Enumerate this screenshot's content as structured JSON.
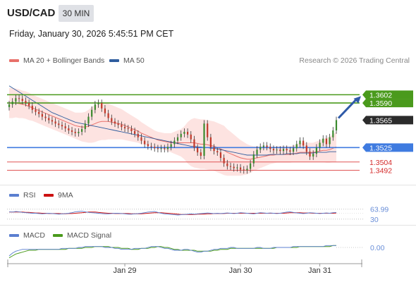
{
  "header": {
    "symbol": "USD/CAD",
    "timeframe": "30 MIN",
    "datetime": "Friday, January 30, 2026 5:45:51 PM CET"
  },
  "legend": {
    "ma20": "MA 20 + Bollinger Bands",
    "ma50": "MA 50",
    "rsi": "RSI",
    "rsi_ma": "9MA",
    "macd": "MACD",
    "macd_signal": "MACD Signal"
  },
  "research": "Research © 2026 Trading Central",
  "colors": {
    "ma20": "#e8706a",
    "ma50": "#2f5d9e",
    "bull": "#3a8a2e",
    "bear": "#c0392b",
    "resistance": "#4a9a1c",
    "support": "#3f7be0",
    "pivot_red": "#e05555",
    "band": "#fde0de",
    "rsi": "#5b7fd0",
    "rsi_ma": "#cc1111",
    "macd": "#5b7fd0",
    "macd_signal": "#4a9a1c"
  },
  "chart_data": {
    "type": "candlestick",
    "price_levels": [
      {
        "label": "1.3602",
        "value": 1.3602,
        "kind": "resistance"
      },
      {
        "label": "1.3590",
        "value": 1.359,
        "kind": "resistance"
      },
      {
        "label": "1.3565",
        "value": 1.3565,
        "kind": "current"
      },
      {
        "label": "1.3525",
        "value": 1.3525,
        "kind": "support"
      },
      {
        "label": "1.3504",
        "value": 1.3504,
        "kind": "pivot"
      },
      {
        "label": "1.3492",
        "value": 1.3492,
        "kind": "pivot"
      }
    ],
    "close": [
      1.3588,
      1.3592,
      1.3597,
      1.3596,
      1.3593,
      1.359,
      1.3586,
      1.358,
      1.3577,
      1.3574,
      1.357,
      1.3568,
      1.3565,
      1.3563,
      1.356,
      1.3558,
      1.3556,
      1.3553,
      1.355,
      1.3548,
      1.3546,
      1.3548,
      1.3552,
      1.356,
      1.357,
      1.358,
      1.3588,
      1.359,
      1.3582,
      1.3575,
      1.3568,
      1.3563,
      1.356,
      1.3558,
      1.3555,
      1.3553,
      1.3552,
      1.3549,
      1.3545,
      1.354,
      1.3535,
      1.353,
      1.3527,
      1.3526,
      1.3524,
      1.3523,
      1.3524,
      1.3523,
      1.3526,
      1.353,
      1.3535,
      1.354,
      1.3545,
      1.3548,
      1.3544,
      1.3537,
      1.3525,
      1.3518,
      1.3513,
      1.356,
      1.354,
      1.3525,
      1.352,
      1.3518,
      1.351,
      1.3502,
      1.3498,
      1.3497,
      1.3495,
      1.3496,
      1.3493,
      1.3492,
      1.3494,
      1.3502,
      1.3515,
      1.3522,
      1.3526,
      1.3528,
      1.3526,
      1.3523,
      1.3521,
      1.3522,
      1.352,
      1.3523,
      1.3521,
      1.3519,
      1.3524,
      1.353,
      1.3535,
      1.3528,
      1.3519,
      1.3512,
      1.3516,
      1.3525,
      1.3532,
      1.3538,
      1.353,
      1.354,
      1.355,
      1.3565
    ],
    "ma20": [
      1.359,
      1.359,
      1.359,
      1.3589,
      1.3588,
      1.3587,
      1.3585,
      1.3583,
      1.3581,
      1.3579,
      1.3577,
      1.3575,
      1.3573,
      1.3571,
      1.3569,
      1.3567,
      1.3565,
      1.3563,
      1.3561,
      1.3559,
      1.3557,
      1.3556,
      1.3555,
      1.3555,
      1.3556,
      1.3558,
      1.356,
      1.3562,
      1.3563,
      1.3563,
      1.3563,
      1.3562,
      1.3561,
      1.356,
      1.3559,
      1.3557,
      1.3555,
      1.3553,
      1.3551,
      1.3549,
      1.3546,
      1.3544,
      1.3542,
      1.354,
      1.3538,
      1.3536,
      1.3535,
      1.3534,
      1.3533,
      1.3532,
      1.3532,
      1.3532,
      1.3532,
      1.3532,
      1.3532,
      1.3532,
      1.3532,
      1.3531,
      1.353,
      1.353,
      1.3529,
      1.3528,
      1.3527,
      1.3525,
      1.3523,
      1.3521,
      1.3518,
      1.3516,
      1.3514,
      1.3512,
      1.351,
      1.3509,
      1.3508,
      1.3508,
      1.3509,
      1.351,
      1.3511,
      1.3512,
      1.3513,
      1.3514,
      1.3514,
      1.3515,
      1.3515,
      1.3515,
      1.3515,
      1.3515,
      1.3516,
      1.3517,
      1.3518,
      1.3518,
      1.3518,
      1.3518,
      1.3518,
      1.3519,
      1.352,
      1.3521,
      1.3521,
      1.3522,
      1.3524,
      1.3526
    ],
    "ma50": [
      1.3615,
      1.3612,
      1.3609,
      1.3606,
      1.3603,
      1.36,
      1.3597,
      1.3594,
      1.3591,
      1.3588,
      1.3585,
      1.3582,
      1.3579,
      1.3576,
      1.3574,
      1.3572,
      1.357,
      1.3568,
      1.3566,
      1.3564,
      1.3562,
      1.3561,
      1.356,
      1.3559,
      1.3558,
      1.3557,
      1.3556,
      1.3555,
      1.3554,
      1.3553,
      1.3552,
      1.3551,
      1.355,
      1.3549,
      1.3548,
      1.3547,
      1.3546,
      1.3545,
      1.3544,
      1.3543,
      1.3542,
      1.3541,
      1.354,
      1.3539,
      1.3538,
      1.3537,
      1.3536,
      1.3535,
      1.3534,
      1.3533,
      1.3532,
      1.3531,
      1.353,
      1.3529,
      1.3528,
      1.3527,
      1.3527,
      1.3526,
      1.3526,
      1.3525,
      1.3525,
      1.3524,
      1.3524,
      1.3523,
      1.3522,
      1.3521,
      1.352,
      1.3519,
      1.3518,
      1.3517,
      1.3516,
      1.3515,
      1.3514,
      1.3514,
      1.3514,
      1.3514,
      1.3514,
      1.3514,
      1.3514,
      1.3515,
      1.3515,
      1.3515,
      1.3515,
      1.3515,
      1.3516,
      1.3516,
      1.3516,
      1.3516,
      1.3517,
      1.3517,
      1.3517,
      1.3517,
      1.3517,
      1.3518,
      1.3518,
      1.3518,
      1.3518,
      1.3519,
      1.3519,
      1.3519
    ],
    "band_width": [
      0.0022,
      0.0022,
      0.0021,
      0.0021,
      0.002,
      0.002,
      0.002,
      0.0019,
      0.0019,
      0.0019,
      0.0019,
      0.0019,
      0.0019,
      0.0019,
      0.0019,
      0.0019,
      0.0019,
      0.0019,
      0.0019,
      0.0019,
      0.0019,
      0.002,
      0.0021,
      0.0022,
      0.0024,
      0.0026,
      0.0027,
      0.0027,
      0.0027,
      0.0027,
      0.0026,
      0.0025,
      0.0024,
      0.0023,
      0.0022,
      0.0021,
      0.002,
      0.0019,
      0.0018,
      0.0017,
      0.0016,
      0.0015,
      0.0014,
      0.0013,
      0.0012,
      0.0012,
      0.0012,
      0.0012,
      0.0013,
      0.0014,
      0.0016,
      0.0018,
      0.002,
      0.0024,
      0.003,
      0.0034,
      0.0036,
      0.0036,
      0.0036,
      0.0036,
      0.0036,
      0.0036,
      0.0036,
      0.0036,
      0.0036,
      0.0036,
      0.0034,
      0.0032,
      0.003,
      0.0028,
      0.0026,
      0.0024,
      0.0022,
      0.002,
      0.0018,
      0.0017,
      0.0016,
      0.0015,
      0.0014,
      0.0013,
      0.0012,
      0.0012,
      0.0012,
      0.0012,
      0.0012,
      0.0012,
      0.0012,
      0.0013,
      0.0014,
      0.0014,
      0.0014,
      0.0014,
      0.0014,
      0.0015,
      0.0016,
      0.0017,
      0.0018,
      0.0019,
      0.002,
      0.0022
    ],
    "price_range": [
      1.3475,
      1.3625
    ],
    "projection_arrow": {
      "from_index": 99,
      "from_value": 1.3568,
      "to_value": 1.36
    },
    "rsi": {
      "levels": [
        {
          "label": "63.99",
          "value": 63.99
        },
        {
          "label": "30",
          "value": 30
        }
      ],
      "range": [
        20,
        80
      ],
      "values": [
        55,
        54,
        56,
        55,
        53,
        52,
        51,
        50,
        50,
        49,
        48,
        49,
        50,
        49,
        48,
        47,
        48,
        49,
        50,
        52,
        55,
        56,
        57,
        55,
        53,
        52,
        51,
        50,
        49,
        48,
        48,
        49,
        50,
        50,
        49,
        48,
        47,
        47,
        48,
        49,
        50,
        52,
        54,
        55,
        56,
        53,
        50,
        48,
        47,
        46,
        45,
        44,
        45,
        46,
        47,
        48,
        47,
        48,
        49,
        50,
        51,
        50,
        49,
        50,
        49,
        50,
        51,
        50,
        49,
        50,
        52,
        51,
        50,
        49,
        48,
        50,
        52,
        51,
        50,
        51,
        50,
        49,
        50,
        52,
        54,
        55,
        53,
        51,
        50,
        49,
        50,
        52,
        51,
        50,
        49,
        50,
        51,
        50,
        52,
        53
      ],
      "ma": [
        54,
        54,
        54,
        54,
        54,
        53,
        53,
        52,
        51,
        51,
        50,
        50,
        49,
        49,
        49,
        49,
        48,
        48,
        49,
        49,
        50,
        51,
        52,
        53,
        54,
        54,
        54,
        53,
        52,
        51,
        50,
        50,
        49,
        49,
        49,
        49,
        49,
        48,
        48,
        48,
        48,
        49,
        50,
        51,
        52,
        52,
        52,
        51,
        50,
        49,
        48,
        47,
        46,
        46,
        46,
        46,
        46,
        47,
        47,
        47,
        48,
        48,
        49,
        49,
        49,
        49,
        50,
        50,
        50,
        50,
        50,
        50,
        50,
        50,
        50,
        50,
        50,
        50,
        50,
        50,
        50,
        50,
        50,
        50,
        51,
        52,
        52,
        52,
        52,
        51,
        51,
        51,
        50,
        50,
        50,
        50,
        50,
        50,
        50,
        51
      ]
    },
    "macd": {
      "levels": [
        {
          "label": "0.00",
          "value": 0
        }
      ],
      "range": [
        -0.0012,
        0.0006
      ],
      "values": [
        -0.0009,
        -0.0006,
        -0.0004,
        -0.0003,
        -0.0002,
        -0.0002,
        -0.0002,
        -0.0002,
        -0.0002,
        -0.0002,
        -0.0002,
        -0.0002,
        -0.0002,
        -0.0002,
        -0.0002,
        -0.0002,
        -0.0001,
        -0.0001,
        -0.0001,
        -0.0001,
        -0.0001,
        0.0,
        0.0,
        0.0001,
        0.0001,
        0.0001,
        0.0001,
        0.0001,
        0.0001,
        0.0,
        0.0,
        0.0,
        -0.0001,
        -0.0001,
        -0.0002,
        -0.0002,
        -0.0002,
        -0.0002,
        -0.0001,
        -0.0001,
        -0.0001,
        -0.0001,
        0.0,
        0.0001,
        0.0001,
        0.0001,
        0.0,
        -0.0001,
        -0.0001,
        -0.0002,
        -0.0003,
        -0.0003,
        -0.0003,
        -0.0002,
        -0.0002,
        -0.0003,
        -0.0004,
        -0.0005,
        -0.0005,
        -0.0004,
        -0.0004,
        -0.0003,
        -0.0002,
        -0.0002,
        -0.0001,
        -0.0001,
        -0.0001,
        0.0,
        0.0,
        -0.0001,
        -0.0001,
        -0.0001,
        -0.0001,
        -0.0001,
        -0.0001,
        0.0,
        0.0,
        -0.0001,
        -0.0001,
        -0.0001,
        0.0,
        0.0,
        0.0,
        0.0,
        0.0,
        0.0,
        0.0001,
        0.0001,
        0.0001,
        0.0001,
        0.0001,
        0.0001,
        0.0001,
        0.0001,
        0.0001,
        0.0001,
        0.0002,
        0.0002,
        0.0002,
        0.0002
      ],
      "signal": [
        -0.0011,
        -0.0009,
        -0.0007,
        -0.0006,
        -0.0005,
        -0.0004,
        -0.0003,
        -0.0003,
        -0.0003,
        -0.0002,
        -0.0002,
        -0.0002,
        -0.0002,
        -0.0002,
        -0.0002,
        -0.0002,
        -0.0002,
        -0.0002,
        -0.0001,
        -0.0001,
        -0.0001,
        -0.0001,
        -0.0001,
        0.0,
        0.0,
        0.0,
        0.0001,
        0.0001,
        0.0001,
        0.0001,
        0.0001,
        0.0,
        0.0,
        0.0,
        -0.0001,
        -0.0001,
        -0.0001,
        -0.0002,
        -0.0002,
        -0.0002,
        -0.0001,
        -0.0001,
        -0.0001,
        0.0,
        0.0,
        0.0001,
        0.0001,
        0.0,
        0.0,
        -0.0001,
        -0.0002,
        -0.0002,
        -0.0003,
        -0.0003,
        -0.0003,
        -0.0003,
        -0.0003,
        -0.0004,
        -0.0004,
        -0.0004,
        -0.0004,
        -0.0004,
        -0.0003,
        -0.0003,
        -0.0002,
        -0.0002,
        -0.0002,
        -0.0001,
        -0.0001,
        -0.0001,
        -0.0001,
        -0.0001,
        -0.0001,
        -0.0001,
        -0.0001,
        -0.0001,
        -0.0001,
        -0.0001,
        -0.0001,
        -0.0001,
        -0.0001,
        0.0,
        0.0,
        0.0,
        0.0,
        0.0,
        0.0,
        0.0,
        0.0001,
        0.0001,
        0.0001,
        0.0001,
        0.0001,
        0.0001,
        0.0001,
        0.0001,
        0.0001,
        0.0001,
        0.0002,
        0.0002
      ]
    },
    "x_ticks": [
      {
        "label": "Jan 29",
        "index": 35
      },
      {
        "label": "Jan 30",
        "index": 70
      },
      {
        "label": "Jan 31",
        "index": 94
      }
    ]
  }
}
